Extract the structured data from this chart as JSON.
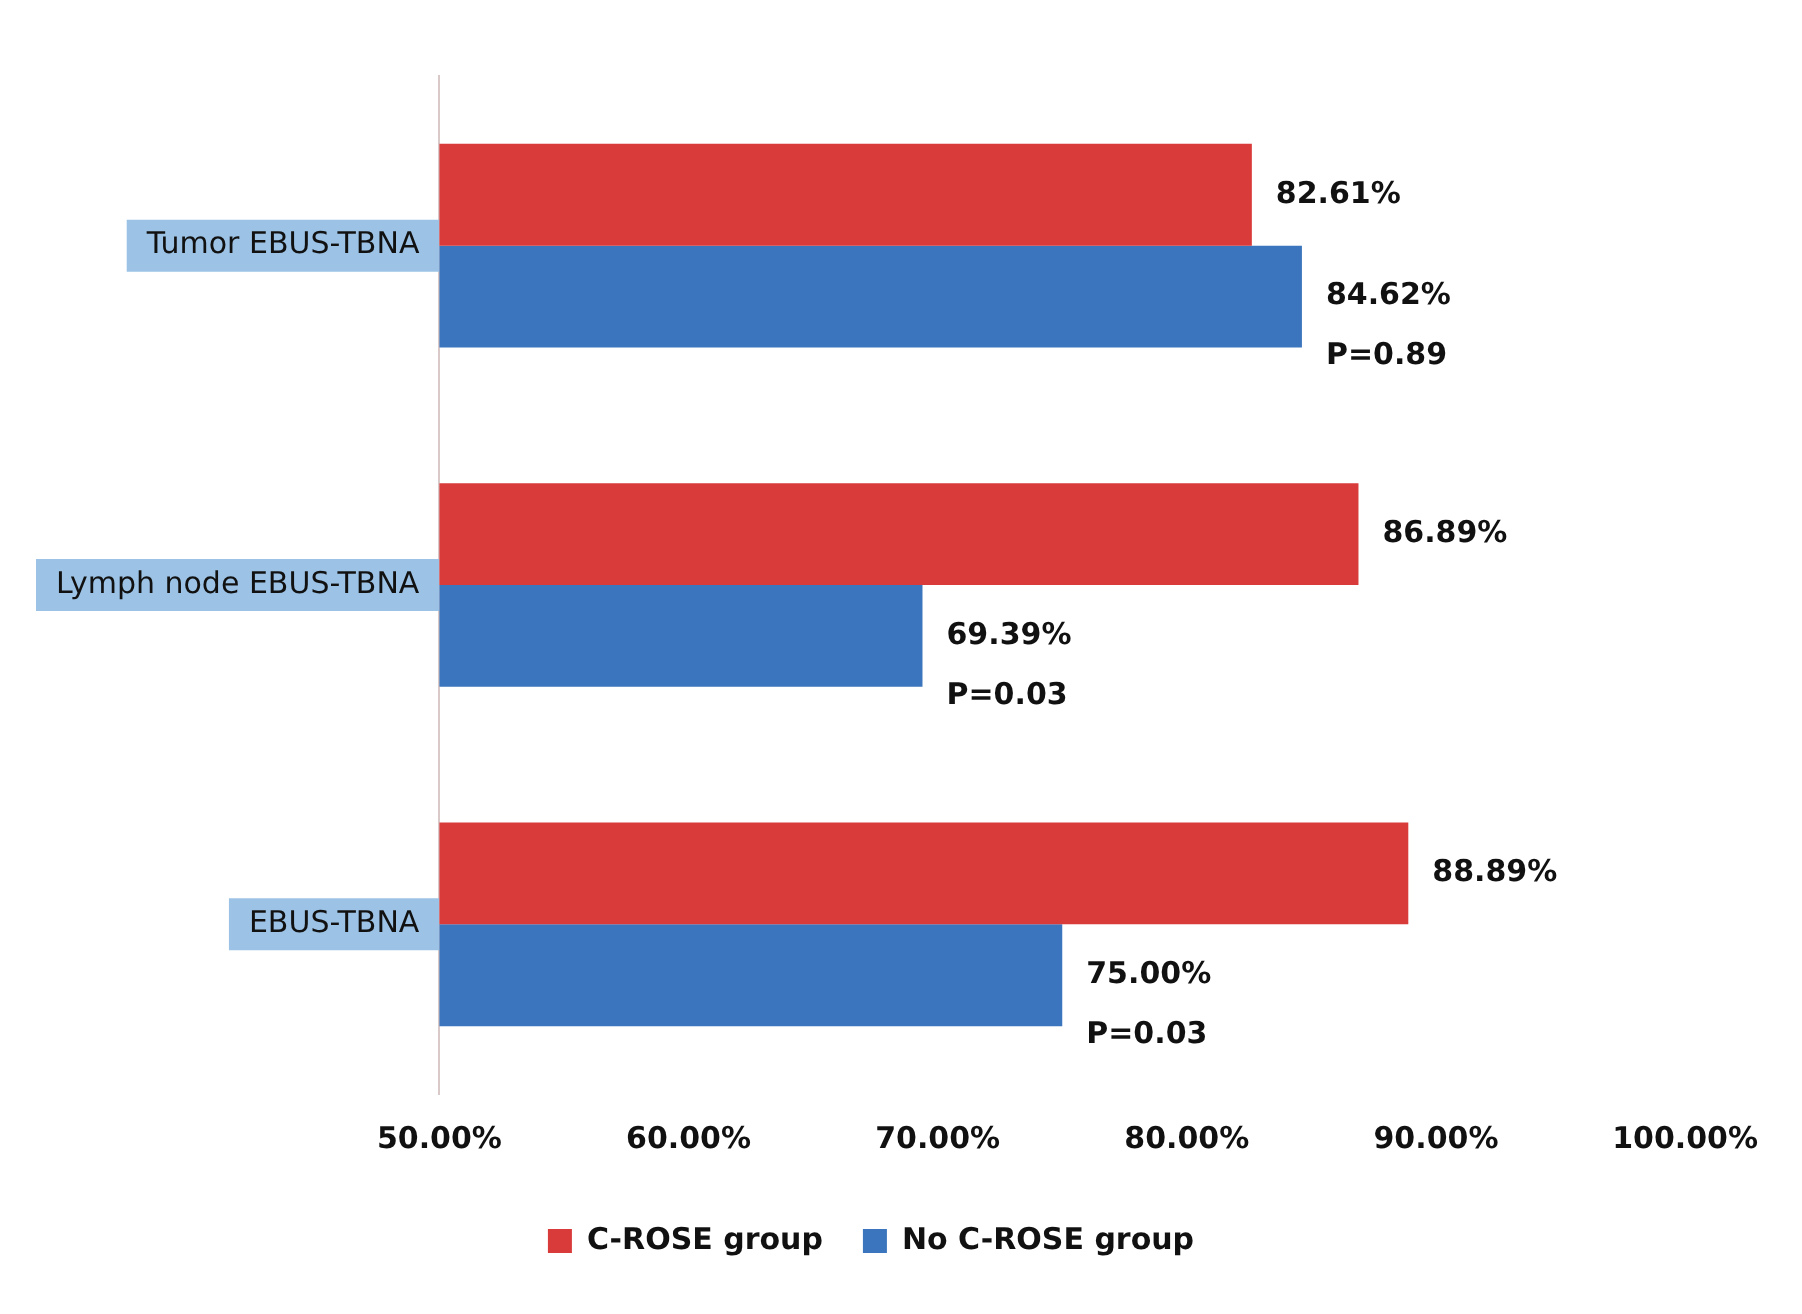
{
  "chart_data": {
    "type": "bar",
    "orientation": "horizontal",
    "categories": [
      "Tumor EBUS-TBNA",
      "Lymph node EBUS-TBNA",
      "EBUS-TBNA"
    ],
    "series": [
      {
        "name": "C-ROSE group",
        "color": "#d93a3a",
        "values": [
          82.61,
          86.89,
          88.89
        ],
        "value_labels": [
          "82.61%",
          "86.89%",
          "88.89%"
        ]
      },
      {
        "name": "No C-ROSE group",
        "color": "#3a75bd",
        "values": [
          84.62,
          69.39,
          75.0
        ],
        "value_labels": [
          "84.62%",
          "69.39%",
          "75.00%"
        ]
      }
    ],
    "xlim": [
      50,
      100
    ],
    "xticks": [
      {
        "value": 50,
        "label": "50.00%"
      },
      {
        "value": 60,
        "label": "60.00%"
      },
      {
        "value": 70,
        "label": "70.00%"
      },
      {
        "value": 80,
        "label": "80.00%"
      },
      {
        "value": 90,
        "label": "90.00%"
      },
      {
        "value": 100,
        "label": "100.00%"
      }
    ],
    "annotations": [
      "P=0.89",
      "P=0.03",
      "P=0.03"
    ],
    "legend": "bottom",
    "grid": false
  }
}
